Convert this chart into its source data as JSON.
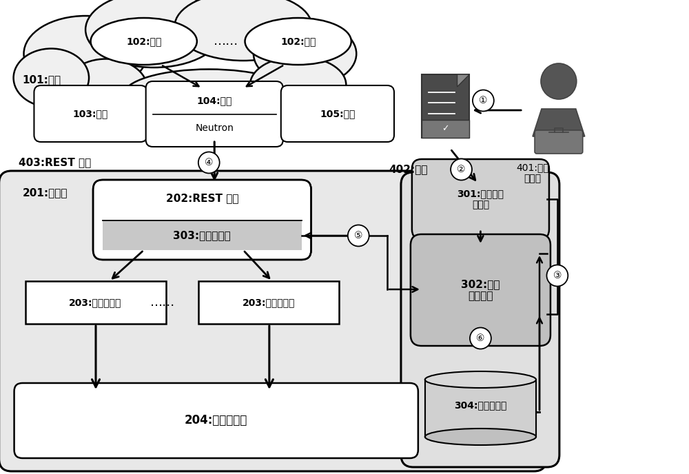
{
  "bg_color": "#ffffff",
  "cloud_fill": "#f0f0f0",
  "box_fill": "#ffffff",
  "controller_fill": "#e8e8e8",
  "policy_outer_fill": "#e0e0e0",
  "policy_interp_fill": "#d0d0d0",
  "policy_engine_fill": "#c0c0c0",
  "filter_fill": "#c8c8c8",
  "db_fill": "#d0d0d0",
  "doc_fill": "#555555",
  "person_fill": "#555555",
  "labels": {
    "cloud": "101:云端",
    "tenant1": "102:租户",
    "tenant2": "102:租户",
    "compute": "103:计算",
    "network_top": "104:网络",
    "network_bot": "Neutron",
    "storage": "105:存储",
    "rest_req": "403:REST 请求",
    "policy_label": "402:策略",
    "admin": "401:网络\n管理员",
    "controller_label": "201:控制器",
    "rest_comp": "202:REST 组件",
    "access_filter": "303:访问过滤器",
    "plugin1": "203:控制器插件",
    "plugin2": "203:控制器插件",
    "dots": "……",
    "kernel": "204:控制器内核",
    "policy_interp": "301:策略语言\n解释器",
    "policy_engine": "302:策略\n执行引擎",
    "policy_db": "304:策略数据库",
    "s1": "①",
    "s2": "②",
    "s3": "③",
    "s4": "④",
    "s5": "⑤",
    "s6": "⑥"
  }
}
